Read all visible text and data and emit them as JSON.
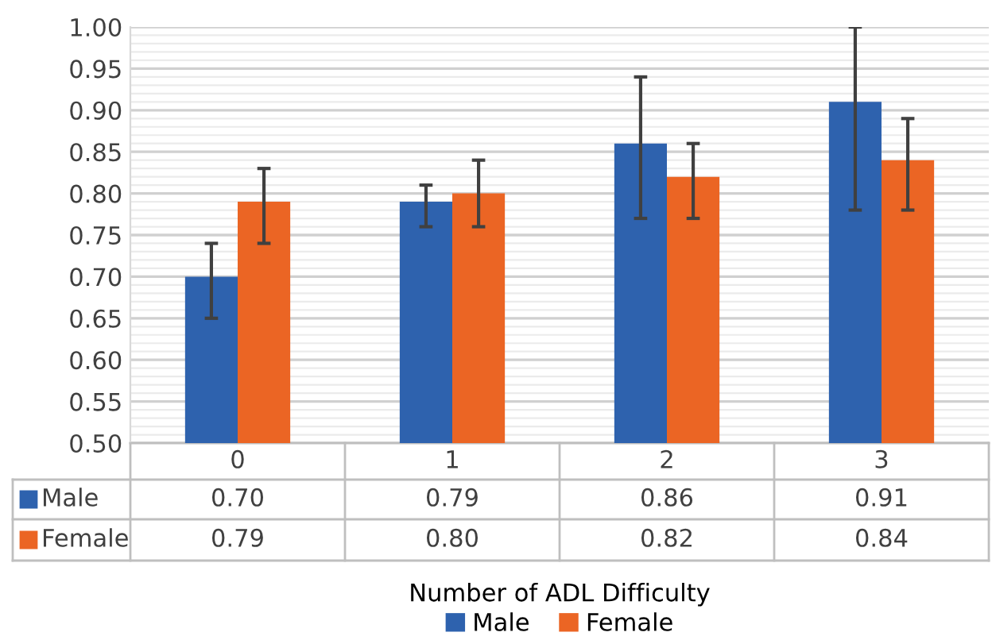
{
  "chart_data": {
    "type": "bar",
    "xlabel": "Number of ADL Difficulty",
    "categories": [
      "0",
      "1",
      "2",
      "3"
    ],
    "series": [
      {
        "name": "Male",
        "color": "#2e62ae",
        "values": [
          0.7,
          0.79,
          0.86,
          0.91
        ],
        "value_labels": [
          "0.70",
          "0.79",
          "0.86",
          "0.91"
        ],
        "errors": [
          [
            0.65,
            0.74
          ],
          [
            0.76,
            0.81
          ],
          [
            0.77,
            0.94
          ],
          [
            0.78,
            1.0
          ]
        ]
      },
      {
        "name": "Female",
        "color": "#eb6524",
        "values": [
          0.79,
          0.8,
          0.82,
          0.84
        ],
        "value_labels": [
          "0.79",
          "0.80",
          "0.82",
          "0.84"
        ],
        "errors": [
          [
            0.74,
            0.83
          ],
          [
            0.76,
            0.84
          ],
          [
            0.77,
            0.86
          ],
          [
            0.78,
            0.89
          ]
        ]
      }
    ],
    "ylim": [
      0.5,
      1.0
    ],
    "yticks": [
      {
        "value": 0.5,
        "label": "0.50"
      },
      {
        "value": 0.55,
        "label": "0.55"
      },
      {
        "value": 0.6,
        "label": "0.60"
      },
      {
        "value": 0.65,
        "label": "0.65"
      },
      {
        "value": 0.7,
        "label": "0.70"
      },
      {
        "value": 0.75,
        "label": "0.75"
      },
      {
        "value": 0.8,
        "label": "0.80"
      },
      {
        "value": 0.85,
        "label": "0.85"
      },
      {
        "value": 0.9,
        "label": "0.90"
      },
      {
        "value": 0.95,
        "label": "0.95"
      },
      {
        "value": 1.0,
        "label": "1.00"
      }
    ],
    "grid": "y",
    "legend": "bottom"
  }
}
